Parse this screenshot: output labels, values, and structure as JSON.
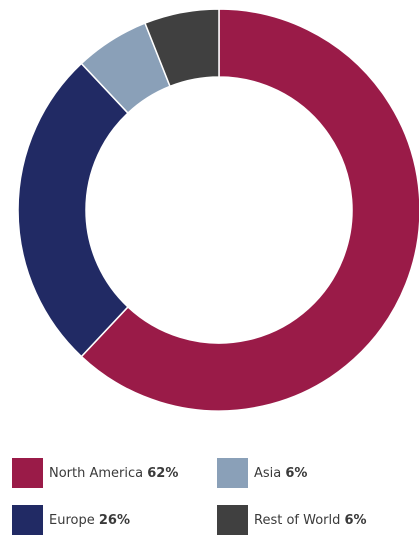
{
  "chart_data": {
    "type": "pie",
    "donut": true,
    "title": "",
    "categories": [
      "North America",
      "Asia",
      "Europe",
      "Rest of World"
    ],
    "values": [
      62,
      6,
      26,
      6
    ],
    "value_labels": [
      "62%",
      "6%",
      "26%",
      "6%"
    ],
    "colors": [
      "#9a1b48",
      "#8aa0b8",
      "#212a64",
      "#404040"
    ],
    "start_angle_deg": 0,
    "direction": "clockwise",
    "slice_order": [
      0,
      2,
      1,
      3
    ],
    "legend_position": "bottom"
  }
}
